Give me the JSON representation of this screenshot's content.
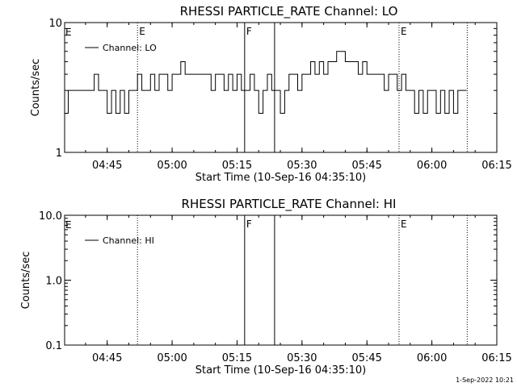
{
  "colors": {
    "background": "#ffffff",
    "foreground": "#000000"
  },
  "footer": {
    "timestamp": "1-Sep-2022 10:21"
  },
  "chart_data": [
    {
      "type": "line",
      "title": "RHESSI PARTICLE_RATE Channel: LO",
      "xlabel": "Start Time (10-Sep-16 04:35:10)",
      "ylabel": "Counts/sec",
      "yscale": "log",
      "xlim": [
        "04:35:10",
        "06:15:00"
      ],
      "ylim": [
        1,
        10
      ],
      "x_ticks": [
        "04:45",
        "05:00",
        "05:15",
        "05:30",
        "05:45",
        "06:00",
        "06:15"
      ],
      "y_ticks": [
        "1",
        "10"
      ],
      "legend": {
        "label": "Channel: LO",
        "position": "top-left"
      },
      "grid": false,
      "markers": [
        {
          "time": "04:52:00",
          "label": "E",
          "style": "dotted"
        },
        {
          "time": "05:16:45",
          "label": "F",
          "style": "solid"
        },
        {
          "time": "05:23:40",
          "label": "",
          "style": "solid"
        },
        {
          "time": "05:52:25",
          "label": "E",
          "style": "dotted"
        },
        {
          "time": "06:08:10",
          "label": "",
          "style": "dotted"
        }
      ],
      "edge_flags": [
        {
          "time": "04:35:10",
          "label": "E"
        }
      ],
      "series": [
        {
          "x": [
            "04:35:10",
            "04:36:00",
            "04:37:00",
            "04:38:00",
            "04:39:00",
            "04:40:00",
            "04:41:00",
            "04:42:00",
            "04:43:00",
            "04:44:00",
            "04:45:00",
            "04:46:00",
            "04:47:00",
            "04:48:00",
            "04:49:00",
            "04:50:00",
            "04:51:00",
            "04:52:00",
            "04:53:00",
            "04:54:00",
            "04:55:00",
            "04:56:00",
            "04:57:00",
            "04:58:00",
            "04:59:00",
            "05:00:00",
            "05:01:00",
            "05:02:00",
            "05:03:00",
            "05:04:00",
            "05:05:00",
            "05:06:00",
            "05:07:00",
            "05:08:00",
            "05:09:00",
            "05:10:00",
            "05:11:00",
            "05:12:00",
            "05:13:00",
            "05:14:00",
            "05:15:00",
            "05:16:00",
            "05:17:00",
            "05:18:00",
            "05:19:00",
            "05:20:00",
            "05:21:00",
            "05:22:00",
            "05:23:00",
            "05:24:00",
            "05:25:00",
            "05:26:00",
            "05:27:00",
            "05:28:00",
            "05:29:00",
            "05:30:00",
            "05:31:00",
            "05:32:00",
            "05:33:00",
            "05:34:00",
            "05:35:00",
            "05:36:00",
            "05:37:00",
            "05:38:00",
            "05:39:00",
            "05:40:00",
            "05:41:00",
            "05:42:00",
            "05:43:00",
            "05:44:00",
            "05:45:00",
            "05:46:00",
            "05:47:00",
            "05:48:00",
            "05:49:00",
            "05:50:00",
            "05:51:00",
            "05:52:00",
            "05:53:00",
            "05:54:00",
            "05:55:00",
            "05:56:00",
            "05:57:00",
            "05:58:00",
            "05:59:00",
            "06:00:00",
            "06:01:00",
            "06:02:00",
            "06:03:00",
            "06:04:00",
            "06:05:00",
            "06:06:00",
            "06:07:00",
            "06:08:00"
          ],
          "y": [
            2,
            3,
            3,
            3,
            3,
            3,
            3,
            4,
            3,
            3,
            2,
            3,
            2,
            3,
            2,
            3,
            3,
            4,
            3,
            3,
            4,
            3,
            4,
            4,
            3,
            4,
            4,
            5,
            4,
            4,
            4,
            4,
            4,
            4,
            3,
            4,
            4,
            3,
            4,
            3,
            4,
            3,
            3,
            4,
            3,
            2,
            3,
            4,
            3,
            3,
            2,
            3,
            4,
            4,
            3,
            4,
            4,
            5,
            4,
            5,
            4,
            5,
            5,
            6,
            6,
            5,
            5,
            5,
            4,
            5,
            4,
            4,
            4,
            4,
            3,
            4,
            4,
            3,
            4,
            3,
            3,
            2,
            3,
            2,
            3,
            3,
            2,
            3,
            2,
            3,
            2,
            3,
            3,
            3
          ]
        }
      ]
    },
    {
      "type": "line",
      "title": "RHESSI PARTICLE_RATE Channel: HI",
      "xlabel": "Start Time (10-Sep-16 04:35:10)",
      "ylabel": "Counts/sec",
      "yscale": "log",
      "xlim": [
        "04:35:10",
        "06:15:00"
      ],
      "ylim": [
        0.1,
        10
      ],
      "x_ticks": [
        "04:45",
        "05:00",
        "05:15",
        "05:30",
        "05:45",
        "06:00",
        "06:15"
      ],
      "y_ticks": [
        "0.1",
        "1.0",
        "10.0"
      ],
      "legend": {
        "label": "Channel: HI",
        "position": "top-left"
      },
      "grid": false,
      "markers": [
        {
          "time": "04:52:00",
          "label": "",
          "style": "dotted"
        },
        {
          "time": "05:16:45",
          "label": "F",
          "style": "solid"
        },
        {
          "time": "05:23:40",
          "label": "",
          "style": "solid"
        },
        {
          "time": "05:52:25",
          "label": "E",
          "style": "dotted"
        },
        {
          "time": "06:08:10",
          "label": "",
          "style": "dotted"
        }
      ],
      "edge_flags": [
        {
          "time": "04:35:10",
          "label": "E"
        }
      ],
      "series": [
        {
          "x": [],
          "y": []
        }
      ]
    }
  ]
}
